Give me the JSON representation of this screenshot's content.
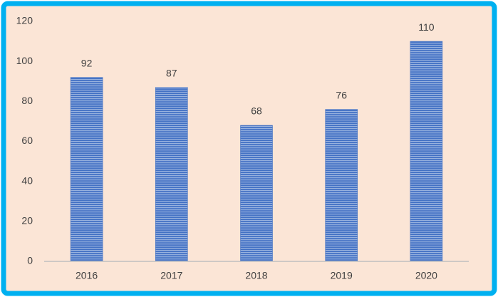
{
  "chart_data": {
    "type": "bar",
    "categories": [
      "2016",
      "2017",
      "2018",
      "2019",
      "2020"
    ],
    "values": [
      92,
      87,
      68,
      76,
      110
    ],
    "color": "#4472c4",
    "ylim": [
      0,
      120
    ],
    "yticks": [
      0,
      20,
      40,
      60,
      80,
      100,
      120
    ],
    "grid": false
  }
}
